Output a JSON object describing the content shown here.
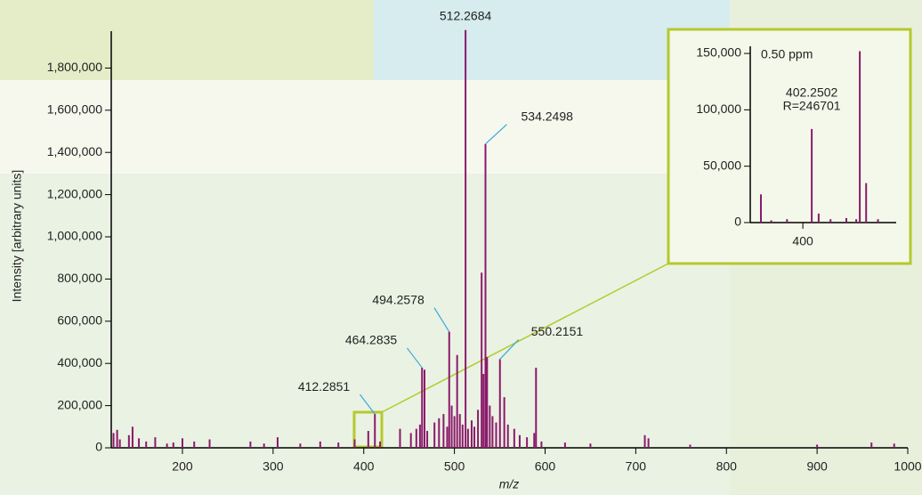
{
  "chart_data": [
    {
      "type": "stem",
      "x_label": "m/z",
      "y_label": "Intensity [arbitrary units]",
      "color": "#8b1a6b",
      "leader_color": "#3aa9d8",
      "xlim": [
        121.5,
        1000
      ],
      "ylim": [
        0,
        2000000
      ],
      "xticks": [
        200,
        300,
        400,
        500,
        600,
        700,
        800,
        900,
        1000
      ],
      "yticks": [
        0,
        {
          "value": 200000,
          "label": "200,000"
        },
        {
          "value": 400000,
          "label": "400,000"
        },
        {
          "value": 600000,
          "label": "600,000"
        },
        {
          "value": 800000,
          "label": "800,000"
        },
        {
          "value": 1000000,
          "label": "1,000,000"
        },
        {
          "value": 1200000,
          "label": "1,200,000"
        },
        {
          "value": 1400000,
          "label": "1,400,000"
        },
        {
          "value": 1600000,
          "label": "1,600,000"
        },
        {
          "value": 1800000,
          "label": "1,800,000"
        }
      ],
      "labeled_peaks": {
        "x": [
          412.2851,
          464.2835,
          494.2578,
          512.2684,
          534.2498,
          550.2151
        ],
        "values": [
          160000,
          380000,
          550000,
          1980000,
          1440000,
          420000
        ]
      },
      "peaks": {
        "x": [
          124,
          128,
          131,
          141,
          145,
          152,
          160,
          170,
          183,
          190,
          200,
          213,
          230,
          275,
          290,
          305,
          330,
          352,
          372,
          390,
          405,
          418,
          440,
          452,
          458,
          462,
          467,
          470,
          478,
          483,
          488,
          492,
          497,
          500,
          503,
          506,
          509,
          515,
          519,
          522,
          526,
          530,
          532,
          536,
          539,
          542,
          546,
          555,
          559,
          566,
          572,
          580,
          588,
          590,
          596,
          622,
          650,
          710,
          714,
          760,
          900,
          960,
          985
        ],
        "values": [
          70000,
          85000,
          40000,
          60000,
          100000,
          45000,
          30000,
          50000,
          20000,
          25000,
          45000,
          30000,
          40000,
          30000,
          20000,
          50000,
          20000,
          30000,
          25000,
          40000,
          80000,
          30000,
          90000,
          70000,
          90000,
          110000,
          370000,
          80000,
          120000,
          140000,
          160000,
          100000,
          200000,
          150000,
          440000,
          160000,
          110000,
          90000,
          130000,
          100000,
          180000,
          830000,
          350000,
          430000,
          200000,
          150000,
          120000,
          240000,
          110000,
          90000,
          60000,
          50000,
          70000,
          380000,
          30000,
          25000,
          20000,
          60000,
          45000,
          15000,
          15000,
          25000,
          20000
        ]
      }
    },
    {
      "type": "stem",
      "color": "#8b1a6b",
      "annotation": "0.50 ppm",
      "resolution_label": "R=246701",
      "xlim": [
        386.7,
        423.6
      ],
      "ylim": [
        0,
        155000
      ],
      "xticks": [
        400
      ],
      "yticks": [
        0,
        {
          "value": 50000,
          "label": "50,000"
        },
        {
          "value": 100000,
          "label": "100,000"
        },
        {
          "value": 150000,
          "label": "150,000"
        }
      ],
      "labeled_peaks": {
        "x": [
          402.2502
        ],
        "values": [
          83000
        ]
      },
      "peaks": {
        "x": [
          389.4,
          392,
          396,
          404,
          407,
          411,
          413.5,
          414.4,
          416,
          419
        ],
        "values": [
          25000,
          2000,
          3000,
          8000,
          3000,
          4000,
          3000,
          152000,
          35000,
          3000
        ]
      }
    }
  ]
}
